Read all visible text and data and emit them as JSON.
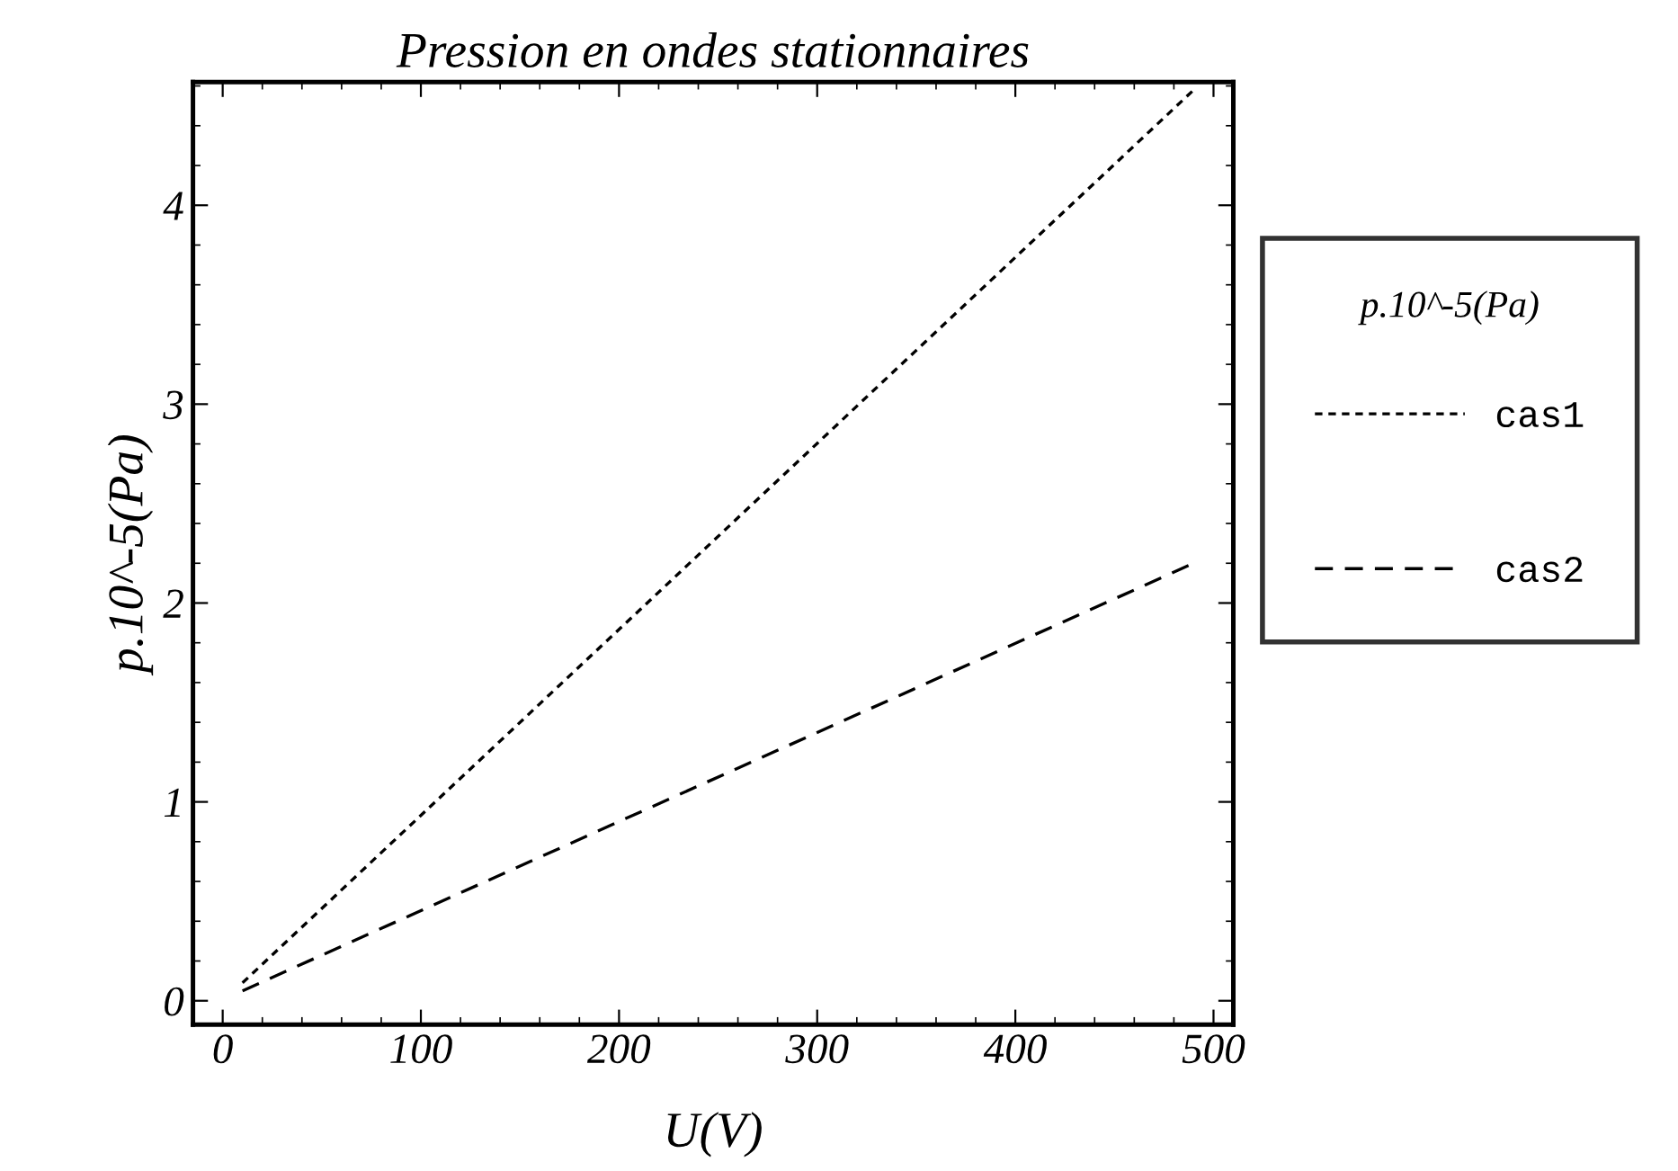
{
  "chart_data": {
    "type": "line",
    "title": "Pression en ondes stationnaires",
    "xlabel": "U(V)",
    "ylabel": "p.10^-5(Pa)",
    "legend_title": "p.10^-5(Pa)",
    "x": [
      10,
      490
    ],
    "series": [
      {
        "name": "cas1",
        "color": "#000000",
        "values": [
          0.09,
          4.58
        ],
        "line_style": "dotted"
      },
      {
        "name": "cas2",
        "color": "#000000",
        "values": [
          0.05,
          2.2
        ],
        "line_style": "dashed"
      }
    ],
    "xlim": [
      -15,
      510
    ],
    "ylim": [
      -0.12,
      4.62
    ],
    "xticks": [
      0,
      100,
      200,
      300,
      400,
      500
    ],
    "yticks": [
      0,
      1,
      2,
      3,
      4
    ],
    "grid": false,
    "legend": "right",
    "marker": "none"
  }
}
